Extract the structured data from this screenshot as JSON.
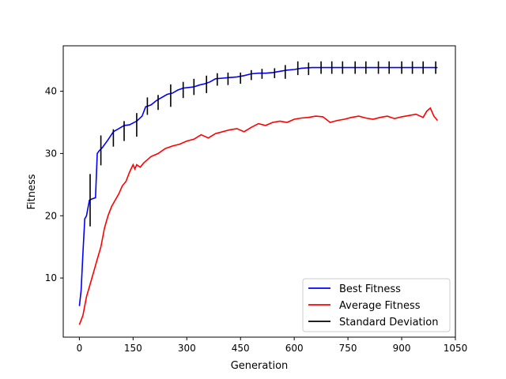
{
  "chart_data": {
    "type": "line",
    "title": "",
    "xlabel": "Generation",
    "ylabel": "Fitness",
    "xlim": [
      -45,
      1050
    ],
    "ylim": [
      0.5,
      47.3
    ],
    "xticks": [
      0,
      150,
      300,
      450,
      600,
      750,
      900,
      1050
    ],
    "yticks": [
      10,
      20,
      30,
      40
    ],
    "legend_position": "lower-right",
    "series": [
      {
        "name": "Best Fitness",
        "color": "#0000ff",
        "x": [
          0,
          5,
          10,
          15,
          20,
          28,
          35,
          45,
          50,
          55,
          65,
          80,
          95,
          110,
          125,
          140,
          160,
          175,
          185,
          200,
          215,
          230,
          245,
          260,
          275,
          290,
          305,
          320,
          335,
          350,
          365,
          380,
          400,
          420,
          440,
          460,
          480,
          500,
          520,
          540,
          560,
          580,
          600,
          620,
          650,
          700,
          800,
          900,
          1000
        ],
        "y": [
          5.5,
          8,
          14,
          19.5,
          20,
          22.5,
          22.7,
          22.9,
          30,
          30.4,
          31,
          32.2,
          33.5,
          34,
          34.5,
          34.6,
          35.2,
          36,
          37.5,
          37.8,
          38.5,
          39,
          39.5,
          39.7,
          40.2,
          40.5,
          40.6,
          40.7,
          41,
          41.2,
          41.5,
          42,
          42.1,
          42.2,
          42.3,
          42.5,
          42.8,
          42.9,
          42.9,
          43,
          43.2,
          43.4,
          43.5,
          43.7,
          43.8,
          43.8,
          43.8,
          43.8,
          43.8
        ]
      },
      {
        "name": "Average Fitness",
        "color": "#ff0000",
        "x": [
          0,
          10,
          20,
          30,
          40,
          50,
          60,
          70,
          80,
          90,
          100,
          110,
          120,
          130,
          140,
          150,
          155,
          160,
          170,
          180,
          190,
          200,
          220,
          240,
          260,
          280,
          300,
          320,
          340,
          360,
          380,
          400,
          420,
          440,
          460,
          480,
          500,
          520,
          540,
          560,
          580,
          600,
          620,
          640,
          660,
          680,
          700,
          720,
          740,
          760,
          780,
          800,
          820,
          840,
          860,
          880,
          900,
          920,
          940,
          960,
          970,
          980,
          990,
          1000
        ],
        "y": [
          2.5,
          4,
          7,
          9,
          11,
          13,
          15,
          18,
          20,
          21.5,
          22.5,
          23.5,
          24.8,
          25.5,
          27,
          28.2,
          27.5,
          28.2,
          27.8,
          28.5,
          29,
          29.5,
          30,
          30.8,
          31.2,
          31.5,
          32,
          32.3,
          33,
          32.5,
          33.2,
          33.5,
          33.8,
          34,
          33.5,
          34.2,
          34.8,
          34.5,
          35,
          35.2,
          35,
          35.5,
          35.7,
          35.8,
          36,
          35.9,
          35,
          35.3,
          35.5,
          35.8,
          36,
          35.7,
          35.5,
          35.8,
          36,
          35.6,
          35.9,
          36.1,
          36.3,
          35.8,
          36.8,
          37.3,
          36,
          35.3
        ]
      }
    ],
    "error_bars": {
      "name": "Standard Deviation",
      "color": "#000000",
      "x": [
        30,
        60,
        95,
        125,
        160,
        190,
        220,
        255,
        290,
        320,
        355,
        385,
        415,
        450,
        480,
        510,
        545,
        575,
        610,
        640,
        675,
        705,
        735,
        770,
        800,
        835,
        865,
        900,
        930,
        960,
        995
      ],
      "y": [
        22.5,
        30.5,
        32.5,
        33.6,
        34.6,
        37.6,
        38.2,
        39.3,
        40.2,
        40.7,
        41.1,
        41.9,
        42.0,
        42.1,
        42.6,
        42.8,
        42.9,
        43.1,
        43.7,
        43.6,
        43.8,
        43.8,
        43.8,
        43.8,
        43.8,
        43.8,
        43.8,
        43.8,
        43.8,
        43.8,
        43.8
      ],
      "err": [
        4.2,
        2.4,
        1.4,
        1.6,
        1.9,
        1.4,
        1.2,
        1.8,
        1.3,
        1.3,
        1.4,
        1.0,
        1.0,
        0.9,
        0.8,
        0.8,
        0.8,
        1.1,
        1.1,
        1.0,
        1.0,
        1.0,
        1.0,
        1.0,
        1.0,
        1.0,
        1.0,
        1.0,
        1.0,
        1.0,
        1.0
      ]
    }
  }
}
